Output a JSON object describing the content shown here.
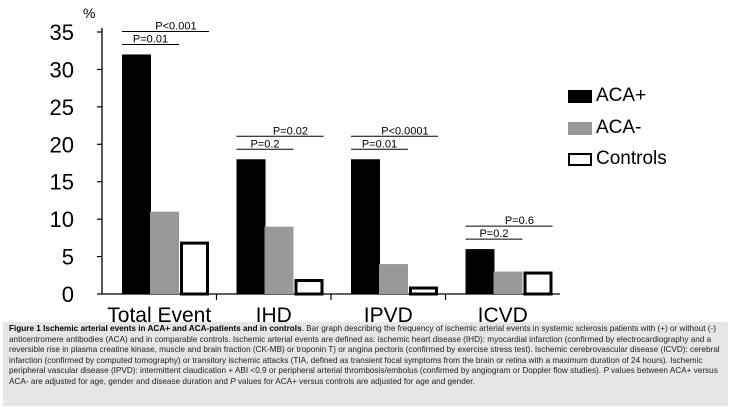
{
  "chart_data": {
    "type": "bar",
    "ylabel": "%",
    "ylim": [
      0,
      35
    ],
    "yticks": [
      0,
      5,
      10,
      15,
      20,
      25,
      30,
      35
    ],
    "categories": [
      "Total Event",
      "IHD",
      "IPVD",
      "ICVD"
    ],
    "series": [
      {
        "name": "ACA+",
        "color": "#000000",
        "values": [
          32,
          18,
          18,
          6
        ]
      },
      {
        "name": "ACA-",
        "color": "#999999",
        "values": [
          11,
          9,
          4,
          3
        ]
      },
      {
        "name": "Controls",
        "color": "#ffffff",
        "values": [
          7,
          2,
          1,
          3
        ]
      }
    ],
    "annotations": [
      {
        "category": "Total Event",
        "label": "P<0.001",
        "from": "ACA+",
        "to": "Controls"
      },
      {
        "category": "Total Event",
        "label": "P=0.01",
        "from": "ACA+",
        "to": "ACA-"
      },
      {
        "category": "IHD",
        "label": "P=0.02",
        "from": "ACA+",
        "to": "Controls"
      },
      {
        "category": "IHD",
        "label": "P=0.2",
        "from": "ACA+",
        "to": "ACA-"
      },
      {
        "category": "IPVD",
        "label": "P<0.0001",
        "from": "ACA+",
        "to": "Controls"
      },
      {
        "category": "IPVD",
        "label": "P=0.01",
        "from": "ACA+",
        "to": "ACA-"
      },
      {
        "category": "ICVD",
        "label": "P=0.6",
        "from": "ACA+",
        "to": "Controls"
      },
      {
        "category": "ICVD",
        "label": "P=0.2",
        "from": "ACA+",
        "to": "ACA-"
      }
    ]
  },
  "legend": [
    {
      "label": "ACA+"
    },
    {
      "label": "ACA-"
    },
    {
      "label": "Controls"
    }
  ],
  "caption": {
    "title": "Figure 1 Ischemic arterial events in ACA+ and ACA-patients and in controls",
    "body_1": ". Bar graph describing the frequency of ischemic arterial events in systemic sclerosis patients with (+) or without (-) anticentromere antibodies (ACA) and in comparable controls. Ischemic arterial events are defined as: ischemic heart disease (IHD): myocardial infarction (confirmed by electrocardiography and a reversible rise in plasma creatine kinase, muscle and brain fraction (CK-MB) or troponin T) or angina pectoris (confirmed by exercise stress test). Ischemic cerebrovascular disease (ICVD): cerebral infarction (confirmed by computed tomography) or transitory ischemic attacks (TIA, defined as transient focal symptoms from the brain or retina with a maximum duration of 24 hours). Ischemic peripheral vascular disease (IPVD): intermittent claudication + ABI <0.9 or peripheral arterial thrombosis/embolus (confirmed by angiogram or Doppler flow studies). ",
    "italic_1": "P",
    "body_2": " values between ACA+ versus ACA- are adjusted for age, gender and disease duration and ",
    "italic_2": "P",
    "body_3": " values for ACA+ versus controls are adjusted for age and gender."
  }
}
